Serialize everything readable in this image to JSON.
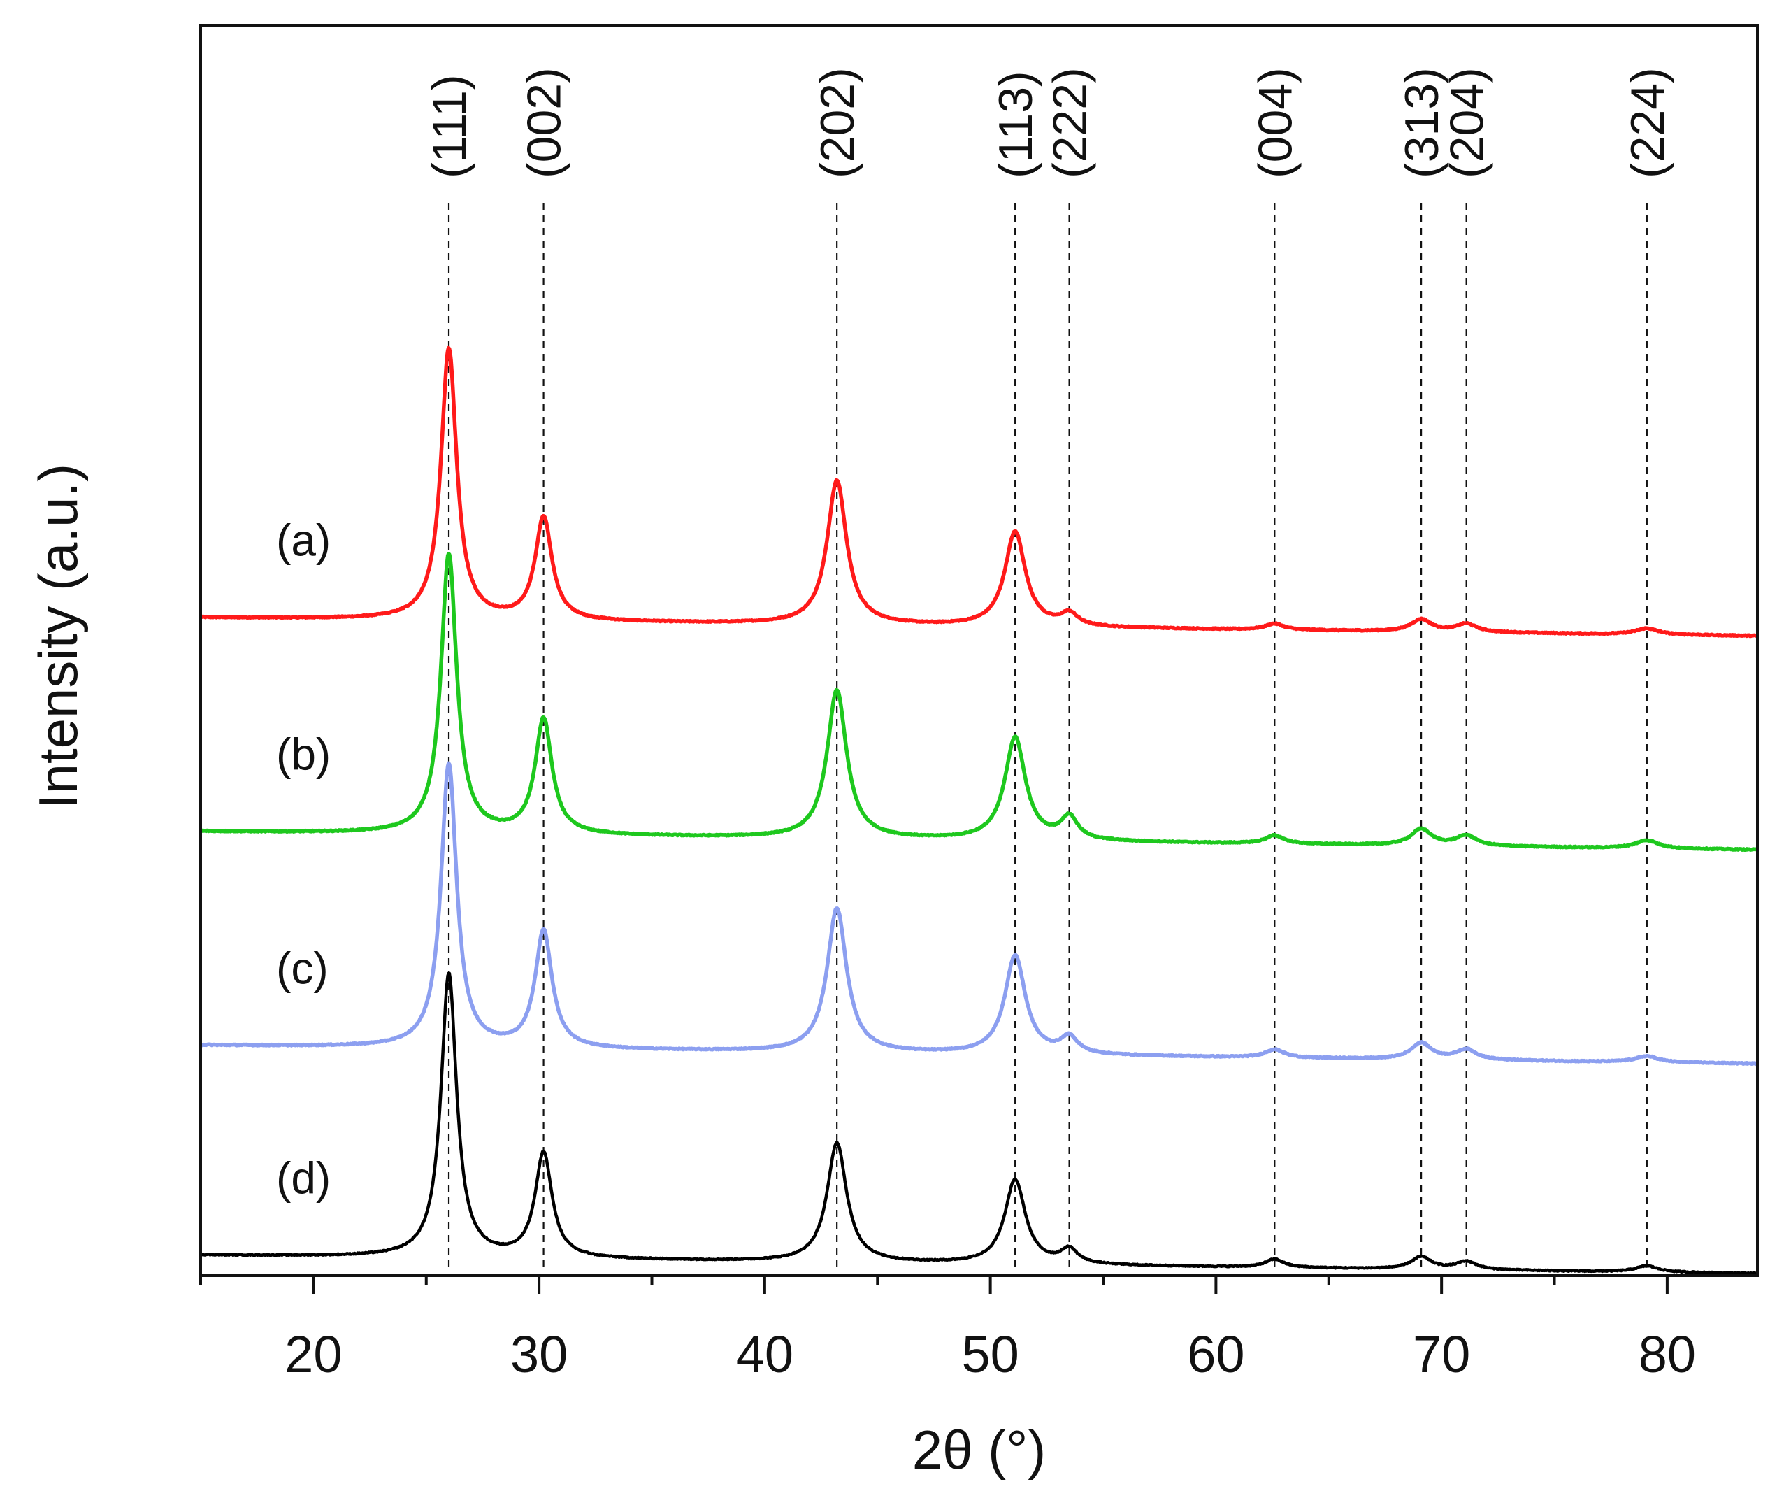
{
  "chart_data": {
    "type": "line",
    "title": "",
    "xlabel": "2θ (°)",
    "ylabel": "Intensity (a.u.)",
    "xlim": [
      15,
      84
    ],
    "x_ticks": [
      20,
      30,
      40,
      50,
      60,
      70,
      80
    ],
    "x_tick_labels": [
      "20",
      "30",
      "40",
      "50",
      "60",
      "70",
      "80"
    ],
    "y_ticks_shown": false,
    "grid": false,
    "reflections": [
      {
        "label": "(111)",
        "x": 26.0
      },
      {
        "label": "(002)",
        "x": 30.2
      },
      {
        "label": "(202)",
        "x": 43.2
      },
      {
        "label": "(113)",
        "x": 51.1
      },
      {
        "label": "(222)",
        "x": 53.5
      },
      {
        "label": "(004)",
        "x": 62.6
      },
      {
        "label": "(313)",
        "x": 69.1
      },
      {
        "label": "(204)",
        "x": 71.1
      },
      {
        "label": "(224)",
        "x": 79.1
      }
    ],
    "series": [
      {
        "name": "(a)",
        "color": "#ff1a1a",
        "baseline": 3.1,
        "baseline_slope": -0.0013,
        "peaks": [
          {
            "x": 26.0,
            "height": 1.32
          },
          {
            "x": 30.2,
            "height": 0.5
          },
          {
            "x": 43.2,
            "height": 0.7
          },
          {
            "x": 51.1,
            "height": 0.46
          },
          {
            "x": 53.5,
            "height": 0.06
          },
          {
            "x": 62.6,
            "height": 0.03
          },
          {
            "x": 69.1,
            "height": 0.06
          },
          {
            "x": 71.1,
            "height": 0.04
          },
          {
            "x": 79.1,
            "height": 0.03
          }
        ]
      },
      {
        "name": "(b)",
        "color": "#1ec81e",
        "baseline": 2.06,
        "baseline_slope": -0.0013,
        "peaks": [
          {
            "x": 26.0,
            "height": 1.36
          },
          {
            "x": 30.2,
            "height": 0.56
          },
          {
            "x": 43.2,
            "height": 0.72
          },
          {
            "x": 51.1,
            "height": 0.5
          },
          {
            "x": 53.5,
            "height": 0.11
          },
          {
            "x": 62.6,
            "height": 0.04
          },
          {
            "x": 69.1,
            "height": 0.08
          },
          {
            "x": 71.1,
            "height": 0.05
          },
          {
            "x": 79.1,
            "height": 0.04
          }
        ]
      },
      {
        "name": "(c)",
        "color": "#8c9ff0",
        "baseline": 1.02,
        "baseline_slope": -0.0013,
        "peaks": [
          {
            "x": 26.0,
            "height": 1.38
          },
          {
            "x": 30.2,
            "height": 0.57
          },
          {
            "x": 43.2,
            "height": 0.7
          },
          {
            "x": 51.1,
            "height": 0.48
          },
          {
            "x": 53.5,
            "height": 0.08
          },
          {
            "x": 62.6,
            "height": 0.04
          },
          {
            "x": 69.1,
            "height": 0.08
          },
          {
            "x": 71.1,
            "height": 0.05
          },
          {
            "x": 79.1,
            "height": 0.03
          }
        ]
      },
      {
        "name": "(d)",
        "color": "#000000",
        "baseline": 0.0,
        "baseline_slope": -0.0013,
        "peaks": [
          {
            "x": 26.0,
            "height": 1.38
          },
          {
            "x": 30.2,
            "height": 0.51
          },
          {
            "x": 43.2,
            "height": 0.58
          },
          {
            "x": 51.1,
            "height": 0.41
          },
          {
            "x": 53.5,
            "height": 0.07
          },
          {
            "x": 62.6,
            "height": 0.04
          },
          {
            "x": 69.1,
            "height": 0.06
          },
          {
            "x": 71.1,
            "height": 0.04
          },
          {
            "x": 79.1,
            "height": 0.03
          }
        ]
      }
    ],
    "ylim": [
      -0.1,
      5.98
    ]
  }
}
